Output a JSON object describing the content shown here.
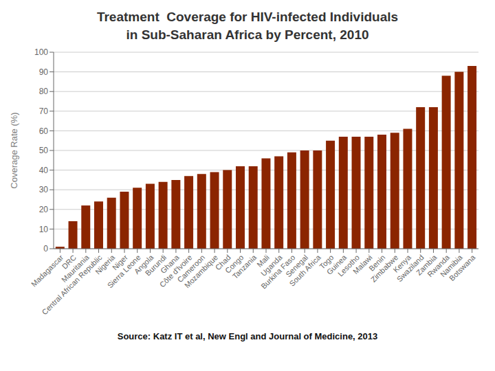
{
  "chart_data": {
    "type": "bar",
    "title": "Treatment  Coverage for HIV-infected Individuals",
    "subtitle": "in Sub-Saharan Africa by Percent, 2010",
    "categories": [
      "Madagascar",
      "DRC",
      "Mauritania",
      "Central African Republic",
      "Nigeria",
      "Niger",
      "Sierra Leone",
      "Angola",
      "Burundi",
      "Ghana",
      "Côte d'Ivoire",
      "Cameroon",
      "Mozambique",
      "Chad",
      "Congo",
      "Tanzania",
      "Mali",
      "Uganda",
      "Burkina Faso",
      "Senegal",
      "South Africa",
      "Togo",
      "Guinea",
      "Lesotho",
      "Malawi",
      "Benin",
      "Zimbabwe",
      "Kenya",
      "Swaziland",
      "Zambia",
      "Rwanda",
      "Namibia",
      "Botswana"
    ],
    "values": [
      1,
      14,
      22,
      24,
      26,
      29,
      31,
      33,
      34,
      35,
      37,
      38,
      39,
      40,
      42,
      42,
      46,
      47,
      49,
      50,
      50,
      55,
      57,
      57,
      57,
      58,
      59,
      61,
      72,
      72,
      88,
      90,
      93
    ],
    "color": "#8B2500",
    "ylabel": "Coverage Rate (%)",
    "ylim": [
      0,
      100
    ],
    "yticks": [
      0,
      10,
      20,
      30,
      40,
      50,
      60,
      70,
      80,
      90,
      100
    ],
    "grid": true,
    "annotations": [
      "Source: Katz IT et al, New Engl and Journal of Medicine, 2013"
    ]
  }
}
